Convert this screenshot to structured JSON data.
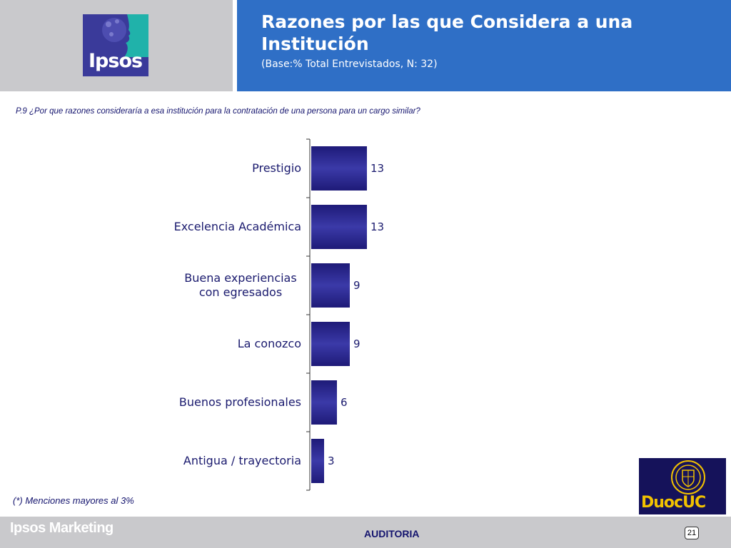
{
  "header": {
    "logo_text": "Ipsos",
    "title": "Razones por las que Considera a una Institución",
    "subtitle": "(Base:% Total Entrevistados, N: 32)"
  },
  "question": "P.9 ¿Por que razones consideraría a esa institución para la contratación de una persona para un cargo similar?",
  "chart_data": {
    "type": "bar",
    "orientation": "horizontal",
    "categories": [
      "Prestigio",
      "Excelencia Académica",
      "Buena experiencias con egresados",
      "La conozco",
      "Buenos profesionales",
      "Antigua / trayectoria"
    ],
    "category_lines": [
      [
        "Prestigio"
      ],
      [
        "Excelencia Académica"
      ],
      [
        "Buena experiencias",
        "con egresados"
      ],
      [
        "La conozco"
      ],
      [
        "Buenos profesionales"
      ],
      [
        "Antigua / trayectoria"
      ]
    ],
    "values": [
      13,
      13,
      9,
      9,
      6,
      3
    ],
    "data_labels": [
      "13",
      "13",
      "9",
      "9",
      "6",
      "3"
    ],
    "xlim": [
      0,
      100
    ],
    "grid": false,
    "bar_color": "#1e1a78",
    "bar_highlight": "#3b3aa8",
    "label_color": "#1a1a6e"
  },
  "footnote": "(*) Menciones mayores al 3%",
  "duoc_logo_text": "DuocUC",
  "footer": {
    "brand": "Ipsos Marketing",
    "center": "AUDITORIA",
    "page": "21"
  }
}
